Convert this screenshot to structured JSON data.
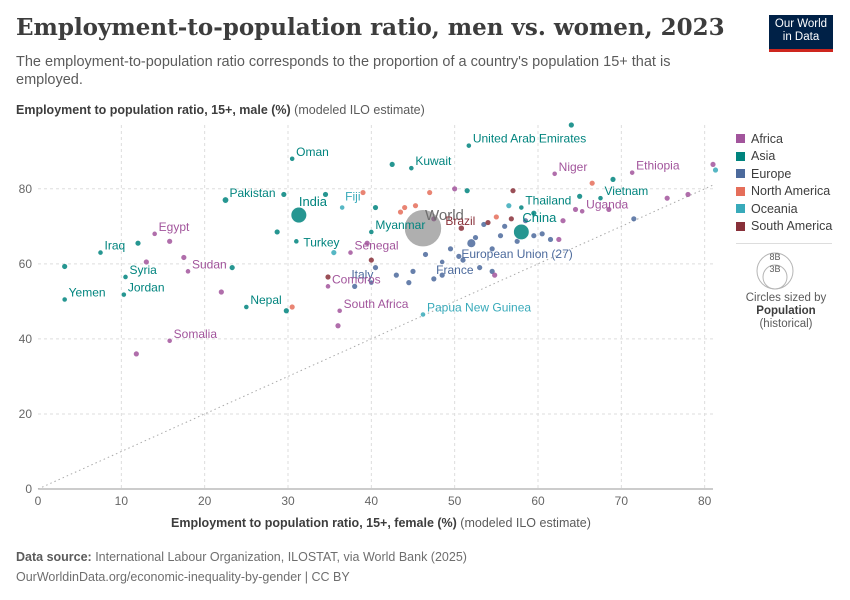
{
  "header": {
    "title": "Employment-to-population ratio, men vs. women, 2023",
    "subtitle": "The employment-to-population ratio corresponds to the proportion of a country's population 15+ that is employed.",
    "logo_line1": "Our World",
    "logo_line2": "in Data"
  },
  "axes": {
    "y_label_bold": "Employment to population ratio, 15+, male (%)",
    "y_label_rest": " (modeled ILO estimate)",
    "x_label_bold": "Employment to population ratio, 15+, female (%)",
    "x_label_rest": " (modeled ILO estimate)"
  },
  "footer": {
    "source_label": "Data source:",
    "source_text": " International Labour Organization, ILOSTAT, via World Bank (2025)",
    "url": "OurWorldinData.org/economic-inequality-by-gender | CC BY"
  },
  "legend": {
    "items": [
      {
        "label": "Africa",
        "color": "#a2559c"
      },
      {
        "label": "Asia",
        "color": "#00847e"
      },
      {
        "label": "Europe",
        "color": "#4c6a9c"
      },
      {
        "label": "North America",
        "color": "#e56e5a"
      },
      {
        "label": "Oceania",
        "color": "#38aaba"
      },
      {
        "label": "South America",
        "color": "#883039"
      }
    ],
    "size_big": "8B",
    "size_small": "3B",
    "size_note_line1": "Circles sized by",
    "size_note_bold": "Population",
    "size_note_line2": "(historical)"
  },
  "colors": {
    "Africa": "#a2559c",
    "Asia": "#00847e",
    "Europe": "#4c6a9c",
    "North America": "#e56e5a",
    "Oceania": "#38aaba",
    "South America": "#883039",
    "World": "#6e6e6e"
  },
  "chart_data": {
    "type": "scatter",
    "title": "Employment-to-population ratio, men vs. women, 2023",
    "xlabel": "Employment to population ratio, 15+, female (%) (modeled ILO estimate)",
    "ylabel": "Employment to population ratio, 15+, male (%) (modeled ILO estimate)",
    "xlim": [
      0,
      81
    ],
    "ylim": [
      0,
      97
    ],
    "x_ticks": [
      0,
      10,
      20,
      30,
      40,
      50,
      60,
      70,
      80
    ],
    "y_ticks": [
      0,
      20,
      40,
      60,
      80
    ],
    "reference_line": "x = y",
    "labeled_points": [
      {
        "name": "United Arab Emirates",
        "region": "Asia",
        "x": 51.7,
        "y": 91.5,
        "pop_m": 10
      },
      {
        "name": "Oman",
        "region": "Asia",
        "x": 30.5,
        "y": 88,
        "pop_m": 5
      },
      {
        "name": "Kuwait",
        "region": "Asia",
        "x": 44.8,
        "y": 85.5,
        "pop_m": 4
      },
      {
        "name": "Niger",
        "region": "Africa",
        "x": 62,
        "y": 84,
        "pop_m": 27
      },
      {
        "name": "Ethiopia",
        "region": "Africa",
        "x": 71.3,
        "y": 84.3,
        "pop_m": 126
      },
      {
        "name": "Pakistan",
        "region": "Asia",
        "x": 22.5,
        "y": 77,
        "pop_m": 240
      },
      {
        "name": "India",
        "region": "Asia",
        "x": 31.3,
        "y": 73,
        "pop_m": 1430
      },
      {
        "name": "Fiji",
        "region": "Oceania",
        "x": 36.5,
        "y": 75,
        "pop_m": 1
      },
      {
        "name": "World",
        "region": "World",
        "x": 46.2,
        "y": 69.5,
        "pop_m": 8000
      },
      {
        "name": "Thailand",
        "region": "Asia",
        "x": 58,
        "y": 75,
        "pop_m": 72
      },
      {
        "name": "Vietnam",
        "region": "Asia",
        "x": 67.5,
        "y": 77.5,
        "pop_m": 99
      },
      {
        "name": "Uganda",
        "region": "Africa",
        "x": 65.3,
        "y": 74,
        "pop_m": 48
      },
      {
        "name": "Egypt",
        "region": "Africa",
        "x": 14,
        "y": 68,
        "pop_m": 113
      },
      {
        "name": "Myanmar",
        "region": "Asia",
        "x": 40,
        "y": 68.5,
        "pop_m": 54
      },
      {
        "name": "Brazil",
        "region": "South America",
        "x": 50.8,
        "y": 69.5,
        "pop_m": 216
      },
      {
        "name": "China",
        "region": "Asia",
        "x": 58,
        "y": 68.5,
        "pop_m": 1410
      },
      {
        "name": "Turkey",
        "region": "Asia",
        "x": 31,
        "y": 66,
        "pop_m": 85
      },
      {
        "name": "Iraq",
        "region": "Asia",
        "x": 7.5,
        "y": 63,
        "pop_m": 45
      },
      {
        "name": "Senegal",
        "region": "Africa",
        "x": 37.5,
        "y": 63,
        "pop_m": 18
      },
      {
        "name": "European Union (27)",
        "region": "Europe",
        "x": 52,
        "y": 65.5,
        "pop_m": 448
      },
      {
        "name": "Sudan",
        "region": "Africa",
        "x": 18,
        "y": 58,
        "pop_m": 48
      },
      {
        "name": "Syria",
        "region": "Asia",
        "x": 10.5,
        "y": 56.5,
        "pop_m": 23
      },
      {
        "name": "France",
        "region": "Europe",
        "x": 48.5,
        "y": 60.5,
        "pop_m": 68
      },
      {
        "name": "Italy",
        "region": "Europe",
        "x": 40,
        "y": 55,
        "pop_m": 59
      },
      {
        "name": "Comoros",
        "region": "Africa",
        "x": 34.8,
        "y": 54,
        "pop_m": 1
      },
      {
        "name": "Yemen",
        "region": "Asia",
        "x": 3.2,
        "y": 50.5,
        "pop_m": 34
      },
      {
        "name": "Jordan",
        "region": "Asia",
        "x": 10.3,
        "y": 51.8,
        "pop_m": 11
      },
      {
        "name": "Nepal",
        "region": "Asia",
        "x": 25,
        "y": 48.5,
        "pop_m": 30
      },
      {
        "name": "South Africa",
        "region": "Africa",
        "x": 36.2,
        "y": 47.5,
        "pop_m": 60
      },
      {
        "name": "Papua New Guinea",
        "region": "Oceania",
        "x": 46.2,
        "y": 46.5,
        "pop_m": 10
      },
      {
        "name": "Somalia",
        "region": "Africa",
        "x": 15.8,
        "y": 39.5,
        "pop_m": 18
      }
    ],
    "unlabeled_points": [
      {
        "region": "Africa",
        "x": 11.8,
        "y": 36
      },
      {
        "region": "Africa",
        "x": 36,
        "y": 43.5
      },
      {
        "region": "Asia",
        "x": 3.2,
        "y": 59.3
      },
      {
        "region": "Asia",
        "x": 12,
        "y": 65.5
      },
      {
        "region": "Africa",
        "x": 13,
        "y": 60.5
      },
      {
        "region": "Africa",
        "x": 15.8,
        "y": 66
      },
      {
        "region": "Africa",
        "x": 17.5,
        "y": 61.7
      },
      {
        "region": "Asia",
        "x": 23.3,
        "y": 59
      },
      {
        "region": "Africa",
        "x": 22,
        "y": 52.5
      },
      {
        "region": "Asia",
        "x": 28.7,
        "y": 68.5
      },
      {
        "region": "Asia",
        "x": 29.5,
        "y": 78.5
      },
      {
        "region": "Asia",
        "x": 29.8,
        "y": 47.5
      },
      {
        "region": "North America",
        "x": 30.5,
        "y": 48.5
      },
      {
        "region": "Asia",
        "x": 34.5,
        "y": 78.5
      },
      {
        "region": "Asia",
        "x": 40.5,
        "y": 75
      },
      {
        "region": "Asia",
        "x": 42.5,
        "y": 86.5
      },
      {
        "region": "Oceania",
        "x": 35.5,
        "y": 63
      },
      {
        "region": "South America",
        "x": 34.8,
        "y": 56.5
      },
      {
        "region": "Europe",
        "x": 38,
        "y": 54
      },
      {
        "region": "North America",
        "x": 39,
        "y": 79
      },
      {
        "region": "Europe",
        "x": 40.5,
        "y": 59
      },
      {
        "region": "Africa",
        "x": 39.5,
        "y": 65.5
      },
      {
        "region": "South America",
        "x": 40,
        "y": 61
      },
      {
        "region": "North America",
        "x": 43.5,
        "y": 73.8
      },
      {
        "region": "Europe",
        "x": 43,
        "y": 57
      },
      {
        "region": "Europe",
        "x": 44.5,
        "y": 55
      },
      {
        "region": "Europe",
        "x": 45,
        "y": 58
      },
      {
        "region": "North America",
        "x": 44,
        "y": 75
      },
      {
        "region": "North America",
        "x": 45.3,
        "y": 75.5
      },
      {
        "region": "North America",
        "x": 47,
        "y": 79
      },
      {
        "region": "Africa",
        "x": 47.5,
        "y": 72
      },
      {
        "region": "Europe",
        "x": 46.5,
        "y": 62.5
      },
      {
        "region": "Europe",
        "x": 47.5,
        "y": 56
      },
      {
        "region": "Europe",
        "x": 48.5,
        "y": 57
      },
      {
        "region": "Africa",
        "x": 50,
        "y": 80
      },
      {
        "region": "Asia",
        "x": 51.5,
        "y": 79.5
      },
      {
        "region": "Europe",
        "x": 49.5,
        "y": 64
      },
      {
        "region": "Europe",
        "x": 50.5,
        "y": 62
      },
      {
        "region": "Europe",
        "x": 51,
        "y": 61
      },
      {
        "region": "Europe",
        "x": 52.5,
        "y": 67
      },
      {
        "region": "Europe",
        "x": 53.5,
        "y": 70.5
      },
      {
        "region": "Europe",
        "x": 54.5,
        "y": 64
      },
      {
        "region": "Europe",
        "x": 55.5,
        "y": 67.5
      },
      {
        "region": "Europe",
        "x": 56,
        "y": 70
      },
      {
        "region": "Europe",
        "x": 53,
        "y": 59
      },
      {
        "region": "Europe",
        "x": 54.5,
        "y": 58
      },
      {
        "region": "Africa",
        "x": 54.8,
        "y": 57
      },
      {
        "region": "South America",
        "x": 54,
        "y": 71
      },
      {
        "region": "North America",
        "x": 55,
        "y": 72.5
      },
      {
        "region": "South America",
        "x": 57,
        "y": 79.5
      },
      {
        "region": "Oceania",
        "x": 56.5,
        "y": 75.5
      },
      {
        "region": "South America",
        "x": 56.8,
        "y": 72
      },
      {
        "region": "Europe",
        "x": 57.5,
        "y": 66
      },
      {
        "region": "Europe",
        "x": 58.5,
        "y": 71.5
      },
      {
        "region": "Europe",
        "x": 59.5,
        "y": 67.5
      },
      {
        "region": "Europe",
        "x": 60.5,
        "y": 68
      },
      {
        "region": "Europe",
        "x": 61.5,
        "y": 66.5
      },
      {
        "region": "Asia",
        "x": 59.5,
        "y": 73.5
      },
      {
        "region": "Africa",
        "x": 62.5,
        "y": 66.5
      },
      {
        "region": "Africa",
        "x": 63,
        "y": 71.5
      },
      {
        "region": "Asia",
        "x": 64,
        "y": 97
      },
      {
        "region": "Africa",
        "x": 64.5,
        "y": 74.5
      },
      {
        "region": "Asia",
        "x": 65,
        "y": 78
      },
      {
        "region": "North America",
        "x": 66.5,
        "y": 81.5
      },
      {
        "region": "Asia",
        "x": 69,
        "y": 82.5
      },
      {
        "region": "Africa",
        "x": 68.5,
        "y": 74.5
      },
      {
        "region": "Europe",
        "x": 71.5,
        "y": 72
      },
      {
        "region": "Africa",
        "x": 75.5,
        "y": 77.5
      },
      {
        "region": "Africa",
        "x": 78,
        "y": 78.5
      },
      {
        "region": "Africa",
        "x": 81,
        "y": 86.5
      },
      {
        "region": "Oceania",
        "x": 81.3,
        "y": 85
      }
    ]
  }
}
